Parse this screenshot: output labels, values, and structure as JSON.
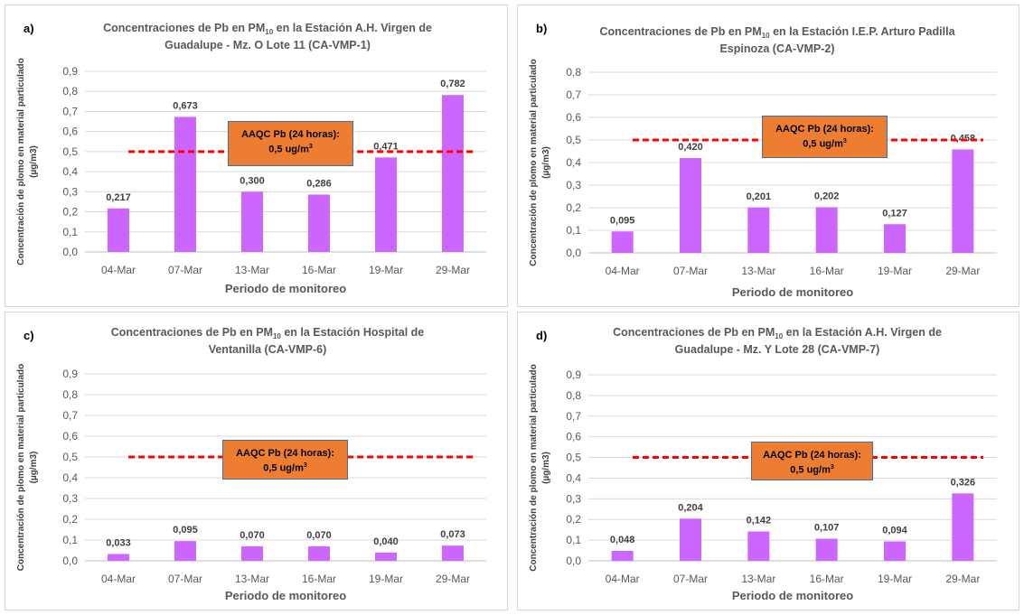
{
  "colors": {
    "bar": "#cc66ff",
    "reference_line": "#ff0000",
    "note_fill": "#ed7d31",
    "note_border": "#41719c",
    "axis_text": "#595959"
  },
  "reference": {
    "value": 0.5
  },
  "note": {
    "line1": "AAQC Pb (24 horas):",
    "line2_prefix": "0,5 ug/m",
    "line2_sup": "3"
  },
  "chart_data": [
    {
      "panel": "a)",
      "type": "bar",
      "title_prefix": "Concentraciones de Pb en PM",
      "title_sub": "10",
      "title_suffix1": " en la Estación A.H. Virgen de",
      "title_line2": "Guadalupe - Mz. O Lote 11 (CA-VMP-1)",
      "categories": [
        "04-Mar",
        "07-Mar",
        "13-Mar",
        "16-Mar",
        "19-Mar",
        "29-Mar"
      ],
      "values": [
        0.217,
        0.673,
        0.3,
        0.286,
        0.471,
        0.782
      ],
      "value_labels": [
        "0,217",
        "0,673",
        "0,300",
        "0,286",
        "0,471",
        "0,782"
      ],
      "ylim": [
        0,
        0.9
      ],
      "yticks": [
        "0,0",
        "0,1",
        "0,2",
        "0,3",
        "0,4",
        "0,5",
        "0,6",
        "0,7",
        "0,8",
        "0,9"
      ],
      "xlabel": "Periodo de monitoreo",
      "ylabel_line1": "Concentración de plomo en material particulado",
      "ylabel_line2": "(µg/m3)",
      "grid": true
    },
    {
      "panel": "b)",
      "type": "bar",
      "title_prefix": "Concentraciones de Pb en PM",
      "title_sub": "10",
      "title_suffix1": " en la Estación I.E.P. Arturo Padilla",
      "title_line2": "Espinoza (CA-VMP-2)",
      "categories": [
        "04-Mar",
        "07-Mar",
        "13-Mar",
        "16-Mar",
        "19-Mar",
        "29-Mar"
      ],
      "values": [
        0.095,
        0.42,
        0.201,
        0.202,
        0.127,
        0.458
      ],
      "value_labels": [
        "0,095",
        "0,420",
        "0,201",
        "0,202",
        "0,127",
        "0,458"
      ],
      "ylim": [
        0,
        0.8
      ],
      "yticks": [
        "0,0",
        "0,1",
        "0,2",
        "0,3",
        "0,4",
        "0,5",
        "0,6",
        "0,7",
        "0,8"
      ],
      "xlabel": "Periodo de monitoreo",
      "ylabel_line1": "Concentración de plomo en material particulado",
      "ylabel_line2": "(µg/m3)",
      "grid": true
    },
    {
      "panel": "c)",
      "type": "bar",
      "title_prefix": "Concentraciones de Pb en PM",
      "title_sub": "10",
      "title_suffix1": " en la Estación Hospital de",
      "title_line2": "Ventanilla (CA-VMP-6)",
      "categories": [
        "04-Mar",
        "07-Mar",
        "13-Mar",
        "16-Mar",
        "19-Mar",
        "29-Mar"
      ],
      "values": [
        0.033,
        0.095,
        0.07,
        0.07,
        0.04,
        0.073
      ],
      "value_labels": [
        "0,033",
        "0,095",
        "0,070",
        "0,070",
        "0,040",
        "0,073"
      ],
      "ylim": [
        0,
        0.9
      ],
      "yticks": [
        "0,0",
        "0,1",
        "0,2",
        "0,3",
        "0,4",
        "0,5",
        "0,6",
        "0,7",
        "0,8",
        "0,9"
      ],
      "xlabel": "Periodo de monitoreo",
      "ylabel_line1": "Concentración de plomo en material particulado",
      "ylabel_line2": "(µg/m3)",
      "grid": true
    },
    {
      "panel": "d)",
      "type": "bar",
      "title_prefix": "Concentraciones de Pb en PM",
      "title_sub": "10",
      "title_suffix1": " en la Estación A.H. Virgen de",
      "title_line2": "Guadalupe - Mz. Y Lote 28 (CA-VMP-7)",
      "categories": [
        "04-Mar",
        "07-Mar",
        "13-Mar",
        "16-Mar",
        "19-Mar",
        "29-Mar"
      ],
      "values": [
        0.048,
        0.204,
        0.142,
        0.107,
        0.094,
        0.326
      ],
      "value_labels": [
        "0,048",
        "0,204",
        "0,142",
        "0,107",
        "0,094",
        "0,326"
      ],
      "ylim": [
        0,
        0.9
      ],
      "yticks": [
        "0,0",
        "0,1",
        "0,2",
        "0,3",
        "0,4",
        "0,5",
        "0,6",
        "0,7",
        "0,8",
        "0,9"
      ],
      "xlabel": "Periodo de monitoreo",
      "ylabel_line1": "Concentración de plomo en material particulado",
      "ylabel_line2": "(µg/m3)",
      "grid": true
    }
  ]
}
